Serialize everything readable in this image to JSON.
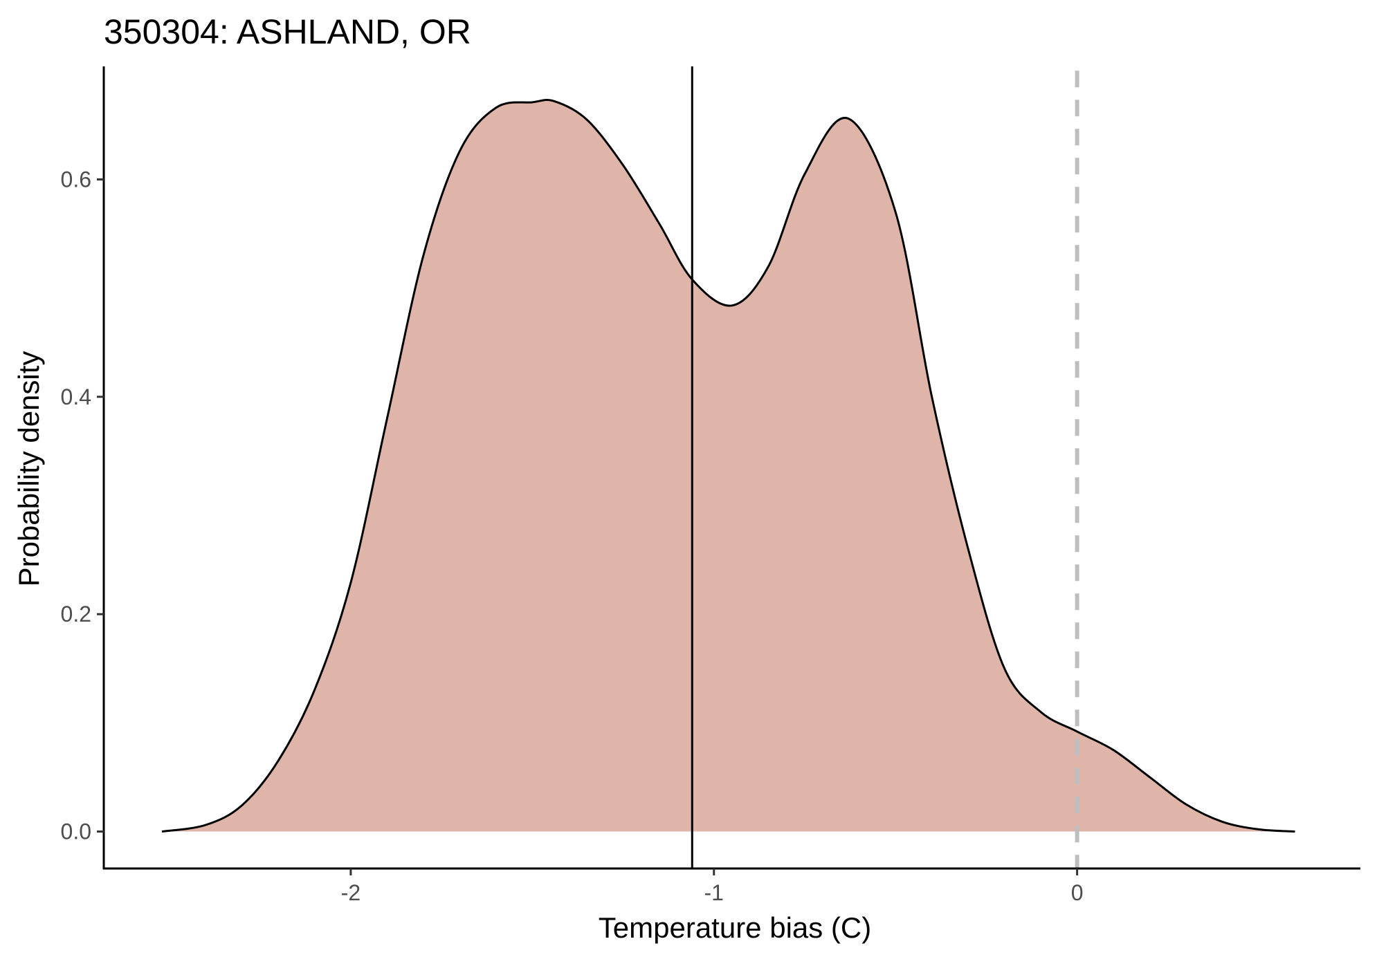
{
  "chart_data": {
    "type": "area",
    "title": "350304: ASHLAND, OR",
    "xlabel": "Temperature bias (C)",
    "ylabel": "Probability density",
    "xlim": [
      -2.68,
      0.78
    ],
    "ylim": [
      -0.034,
      0.704
    ],
    "x_ticks": [
      -2,
      -1,
      0
    ],
    "x_tick_labels": [
      "-2",
      "-1",
      "0"
    ],
    "y_ticks": [
      0.0,
      0.2,
      0.4,
      0.6
    ],
    "y_tick_labels": [
      "0.0",
      "0.2",
      "0.4",
      "0.6"
    ],
    "grid": false,
    "legend": "none",
    "fill_color": "#e0b5a9",
    "line_color": "#000000",
    "series": [
      {
        "x": [
          -2.52,
          -2.4,
          -2.3,
          -2.2,
          -2.1,
          -2.0,
          -1.9,
          -1.8,
          -1.7,
          -1.6,
          -1.5,
          -1.44,
          -1.35,
          -1.25,
          -1.15,
          -1.06,
          -0.95,
          -0.85,
          -0.75,
          -0.63,
          -0.5,
          -0.4,
          -0.3,
          -0.2,
          -0.1,
          0.0,
          0.1,
          0.2,
          0.3,
          0.4,
          0.5,
          0.6
        ],
        "y": [
          0.0,
          0.006,
          0.024,
          0.065,
          0.13,
          0.229,
          0.38,
          0.53,
          0.626,
          0.666,
          0.671,
          0.672,
          0.655,
          0.613,
          0.559,
          0.508,
          0.484,
          0.52,
          0.605,
          0.656,
          0.57,
          0.4,
          0.26,
          0.15,
          0.11,
          0.092,
          0.075,
          0.05,
          0.025,
          0.009,
          0.002,
          0.0
        ]
      }
    ],
    "annotations": [
      {
        "type": "vline",
        "x": -1.06,
        "style": "solid",
        "color": "#000000"
      },
      {
        "type": "vline",
        "x": 0.0,
        "style": "dashed",
        "color": "#bebebe"
      }
    ]
  }
}
